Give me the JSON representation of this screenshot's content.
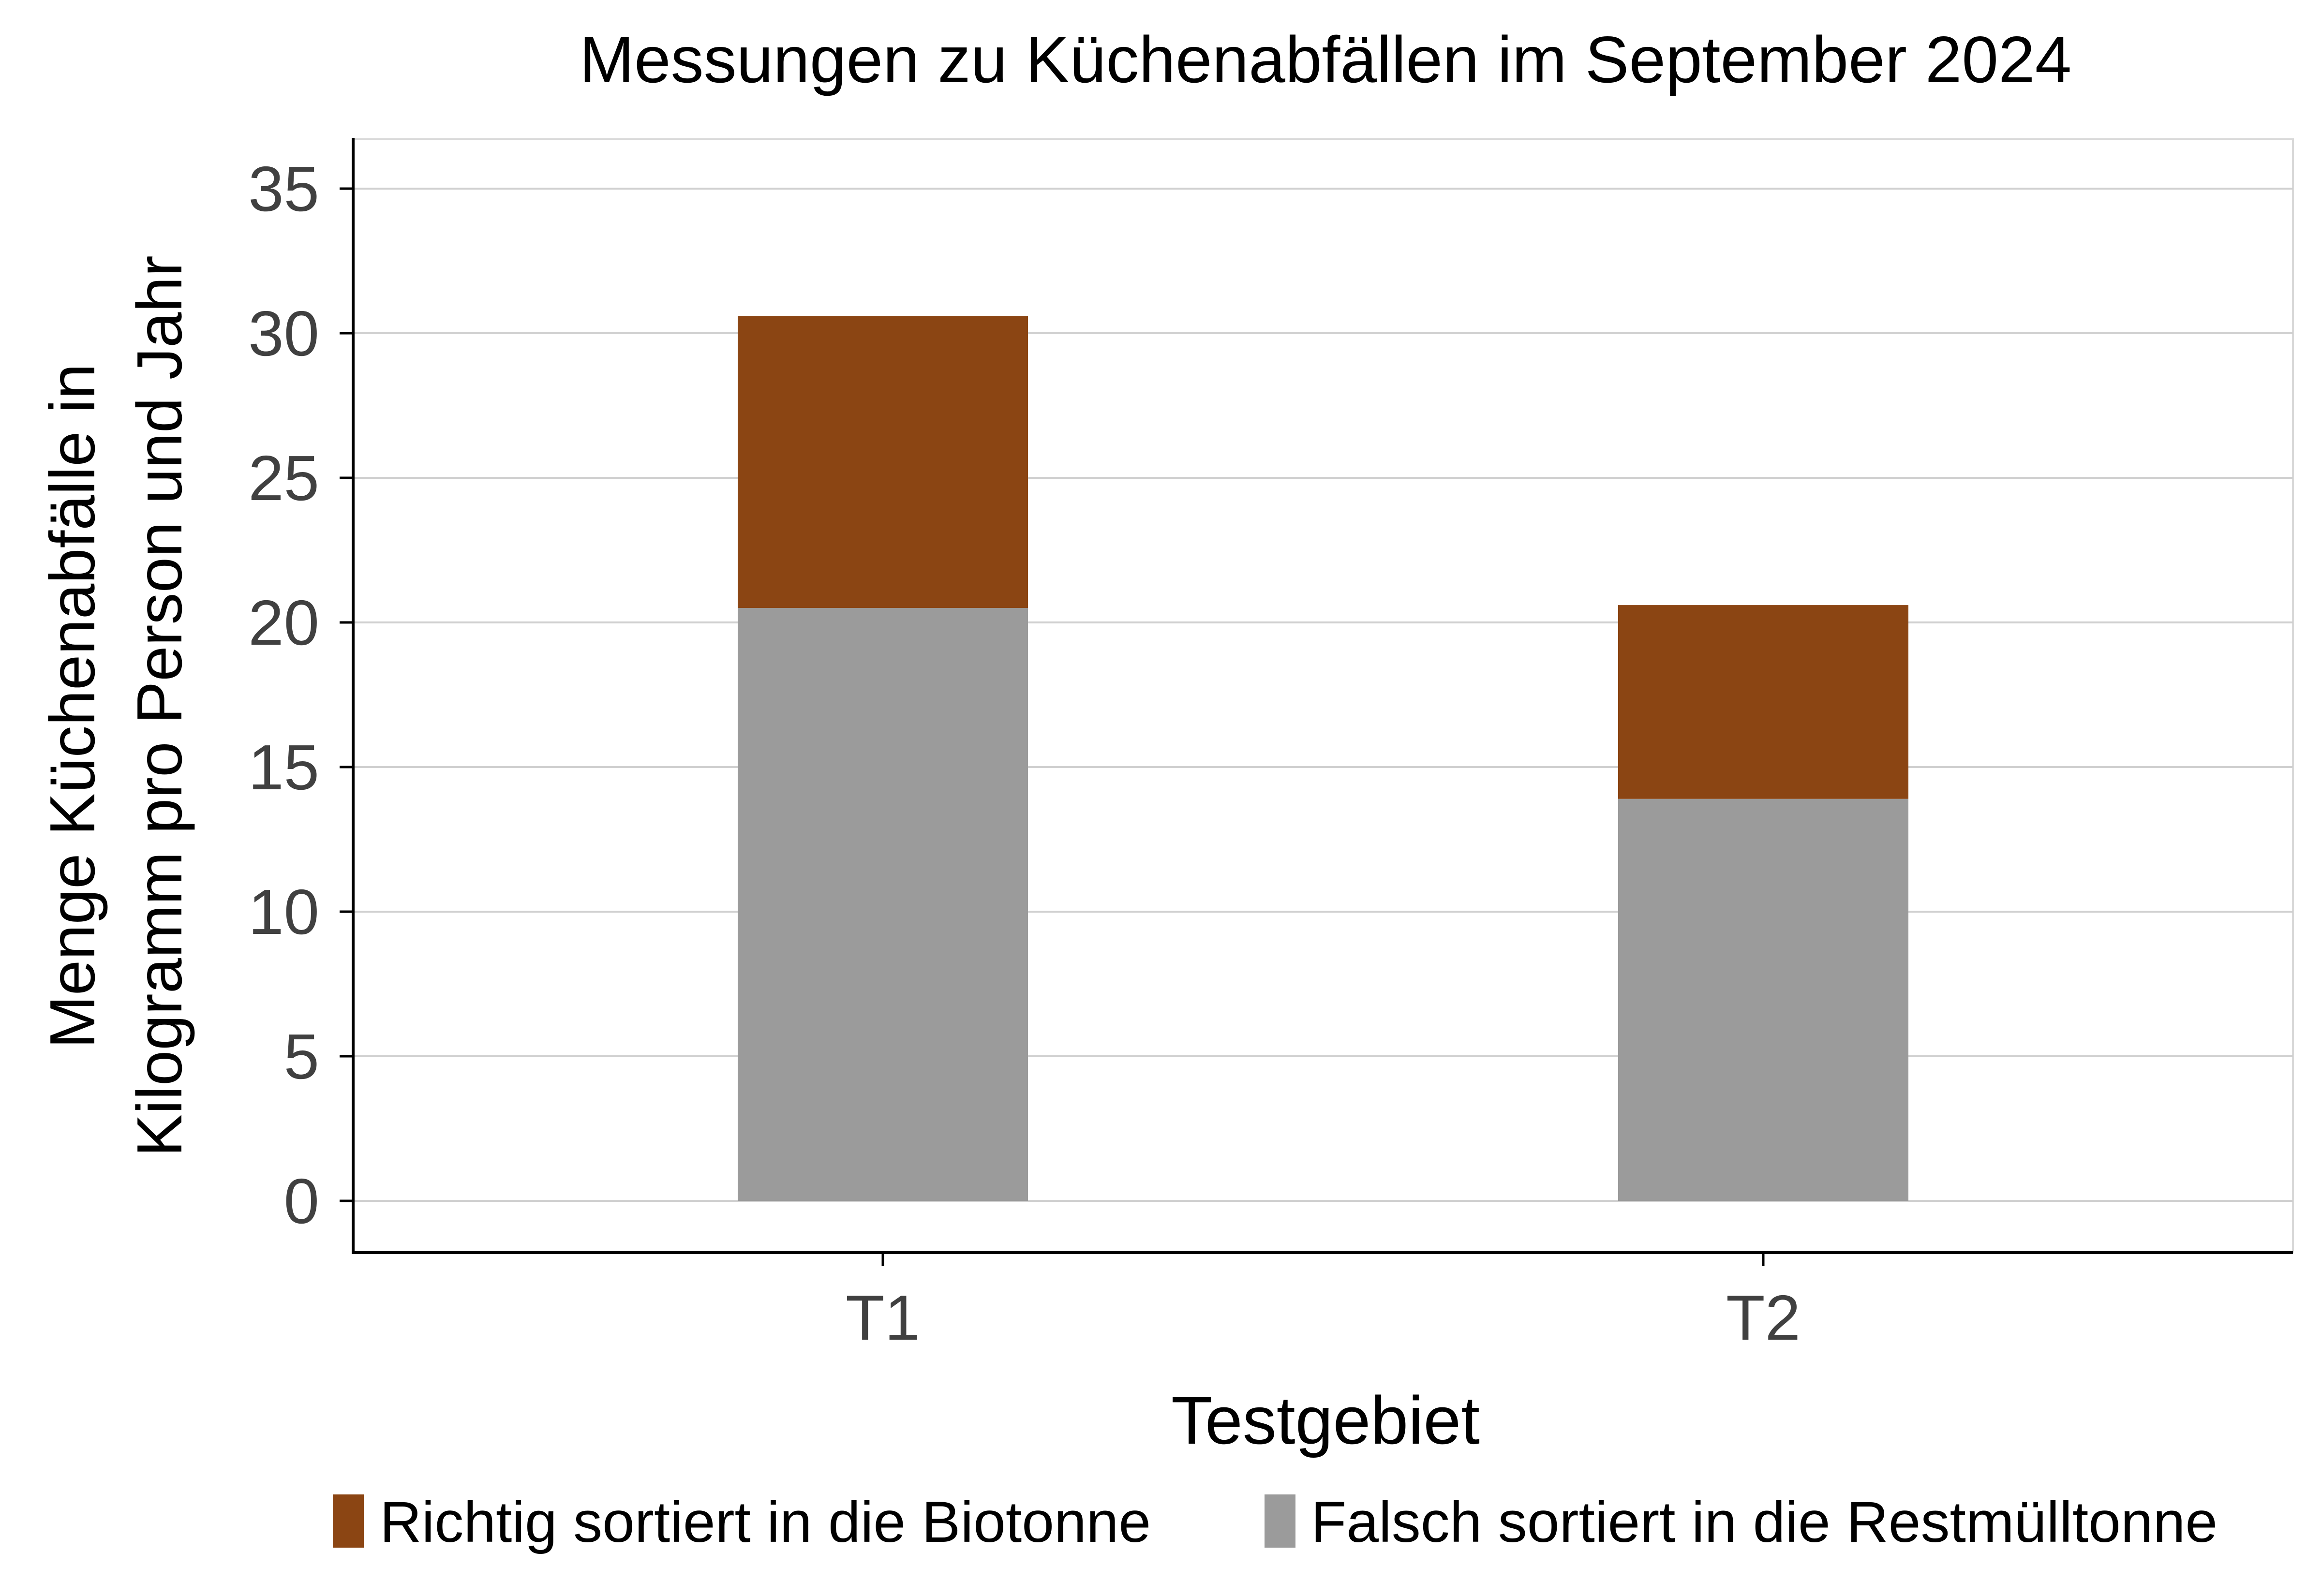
{
  "chart_data": {
    "type": "bar",
    "stacked": true,
    "title": "Messungen zu Küchenabfällen im September 2024",
    "xlabel": "Testgebiet",
    "ylabel_lines": [
      "Menge Küchenabfälle in",
      "Kilogramm pro Person und Jahr"
    ],
    "categories": [
      "T1",
      "T2"
    ],
    "ylim": [
      0,
      36.5
    ],
    "yticks": [
      0,
      5,
      10,
      15,
      20,
      25,
      30,
      35
    ],
    "grid": true,
    "legend_position": "bottom",
    "series": [
      {
        "name": "Falsch sortiert in die Restmülltonne",
        "color": "#9b9b9b",
        "values": [
          20.5,
          13.9
        ]
      },
      {
        "name": "Richtig sortiert in die Biotonne",
        "color": "#8b4513",
        "values": [
          10.1,
          6.7
        ]
      }
    ],
    "legend_order": [
      1,
      0
    ]
  }
}
